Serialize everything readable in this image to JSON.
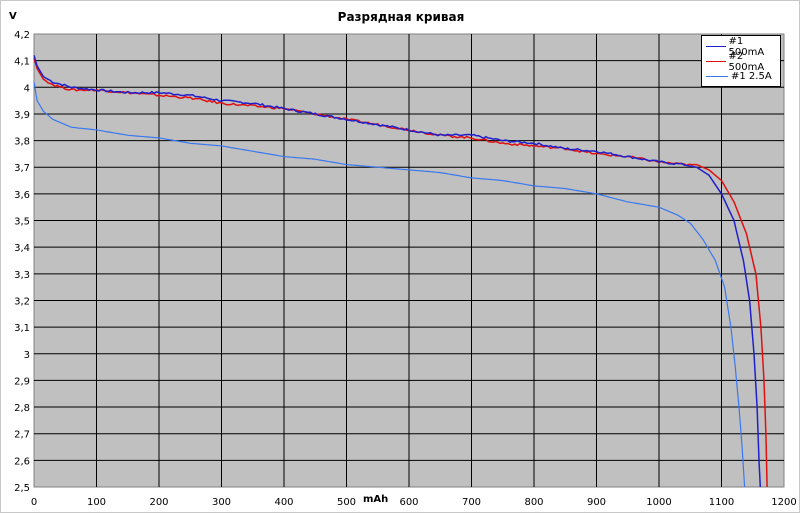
{
  "chart_data": {
    "type": "line",
    "title": "Разрядная кривая",
    "xlabel": "mAh",
    "ylabel": "V",
    "xlim": [
      0,
      1200
    ],
    "ylim": [
      2.5,
      4.2
    ],
    "x_ticks": [
      "0",
      "100",
      "200",
      "300",
      "400",
      "500",
      "600",
      "700",
      "800",
      "900",
      "1000",
      "1100",
      "1200"
    ],
    "y_ticks": [
      "2,5",
      "2,6",
      "2,7",
      "2,8",
      "2,9",
      "3",
      "3,1",
      "3,2",
      "3,3",
      "3,4",
      "3,5",
      "3,6",
      "3,7",
      "3,8",
      "3,9",
      "4",
      "4,1",
      "4,2"
    ],
    "grid": true,
    "legend_position": "top-right",
    "series": [
      {
        "name": "#1 500mA",
        "color": "#1f1fcc",
        "points": [
          [
            0,
            4.12
          ],
          [
            5,
            4.08
          ],
          [
            15,
            4.04
          ],
          [
            30,
            4.02
          ],
          [
            60,
            4.0
          ],
          [
            100,
            3.99
          ],
          [
            150,
            3.98
          ],
          [
            200,
            3.98
          ],
          [
            250,
            3.97
          ],
          [
            300,
            3.95
          ],
          [
            350,
            3.94
          ],
          [
            400,
            3.92
          ],
          [
            450,
            3.9
          ],
          [
            500,
            3.88
          ],
          [
            550,
            3.86
          ],
          [
            600,
            3.84
          ],
          [
            650,
            3.82
          ],
          [
            700,
            3.82
          ],
          [
            750,
            3.8
          ],
          [
            800,
            3.79
          ],
          [
            850,
            3.77
          ],
          [
            900,
            3.76
          ],
          [
            950,
            3.74
          ],
          [
            1000,
            3.72
          ],
          [
            1040,
            3.71
          ],
          [
            1060,
            3.7
          ],
          [
            1080,
            3.67
          ],
          [
            1100,
            3.6
          ],
          [
            1120,
            3.5
          ],
          [
            1135,
            3.35
          ],
          [
            1145,
            3.2
          ],
          [
            1152,
            3.0
          ],
          [
            1157,
            2.8
          ],
          [
            1160,
            2.6
          ],
          [
            1162,
            2.5
          ]
        ]
      },
      {
        "name": "#2 500mA",
        "color": "#e01010",
        "points": [
          [
            0,
            4.11
          ],
          [
            5,
            4.07
          ],
          [
            15,
            4.03
          ],
          [
            30,
            4.01
          ],
          [
            60,
            3.99
          ],
          [
            100,
            3.99
          ],
          [
            150,
            3.98
          ],
          [
            200,
            3.97
          ],
          [
            250,
            3.96
          ],
          [
            300,
            3.94
          ],
          [
            350,
            3.93
          ],
          [
            400,
            3.92
          ],
          [
            450,
            3.9
          ],
          [
            500,
            3.88
          ],
          [
            550,
            3.86
          ],
          [
            600,
            3.84
          ],
          [
            650,
            3.82
          ],
          [
            700,
            3.81
          ],
          [
            750,
            3.79
          ],
          [
            800,
            3.78
          ],
          [
            850,
            3.77
          ],
          [
            900,
            3.75
          ],
          [
            950,
            3.74
          ],
          [
            1000,
            3.72
          ],
          [
            1040,
            3.71
          ],
          [
            1060,
            3.71
          ],
          [
            1080,
            3.69
          ],
          [
            1100,
            3.65
          ],
          [
            1120,
            3.57
          ],
          [
            1140,
            3.45
          ],
          [
            1155,
            3.3
          ],
          [
            1163,
            3.1
          ],
          [
            1168,
            2.9
          ],
          [
            1171,
            2.7
          ],
          [
            1173,
            2.5
          ]
        ]
      },
      {
        "name": "#1 2.5A",
        "color": "#3a78f0",
        "points": [
          [
            0,
            4.02
          ],
          [
            5,
            3.95
          ],
          [
            15,
            3.91
          ],
          [
            30,
            3.88
          ],
          [
            60,
            3.85
          ],
          [
            100,
            3.84
          ],
          [
            150,
            3.82
          ],
          [
            200,
            3.81
          ],
          [
            250,
            3.79
          ],
          [
            300,
            3.78
          ],
          [
            350,
            3.76
          ],
          [
            400,
            3.74
          ],
          [
            450,
            3.73
          ],
          [
            500,
            3.71
          ],
          [
            550,
            3.7
          ],
          [
            600,
            3.69
          ],
          [
            650,
            3.68
          ],
          [
            700,
            3.66
          ],
          [
            750,
            3.65
          ],
          [
            800,
            3.63
          ],
          [
            850,
            3.62
          ],
          [
            900,
            3.6
          ],
          [
            950,
            3.57
          ],
          [
            1000,
            3.55
          ],
          [
            1030,
            3.52
          ],
          [
            1050,
            3.49
          ],
          [
            1070,
            3.43
          ],
          [
            1090,
            3.35
          ],
          [
            1105,
            3.25
          ],
          [
            1115,
            3.1
          ],
          [
            1122,
            2.95
          ],
          [
            1128,
            2.8
          ],
          [
            1133,
            2.65
          ],
          [
            1137,
            2.5
          ]
        ]
      }
    ]
  }
}
